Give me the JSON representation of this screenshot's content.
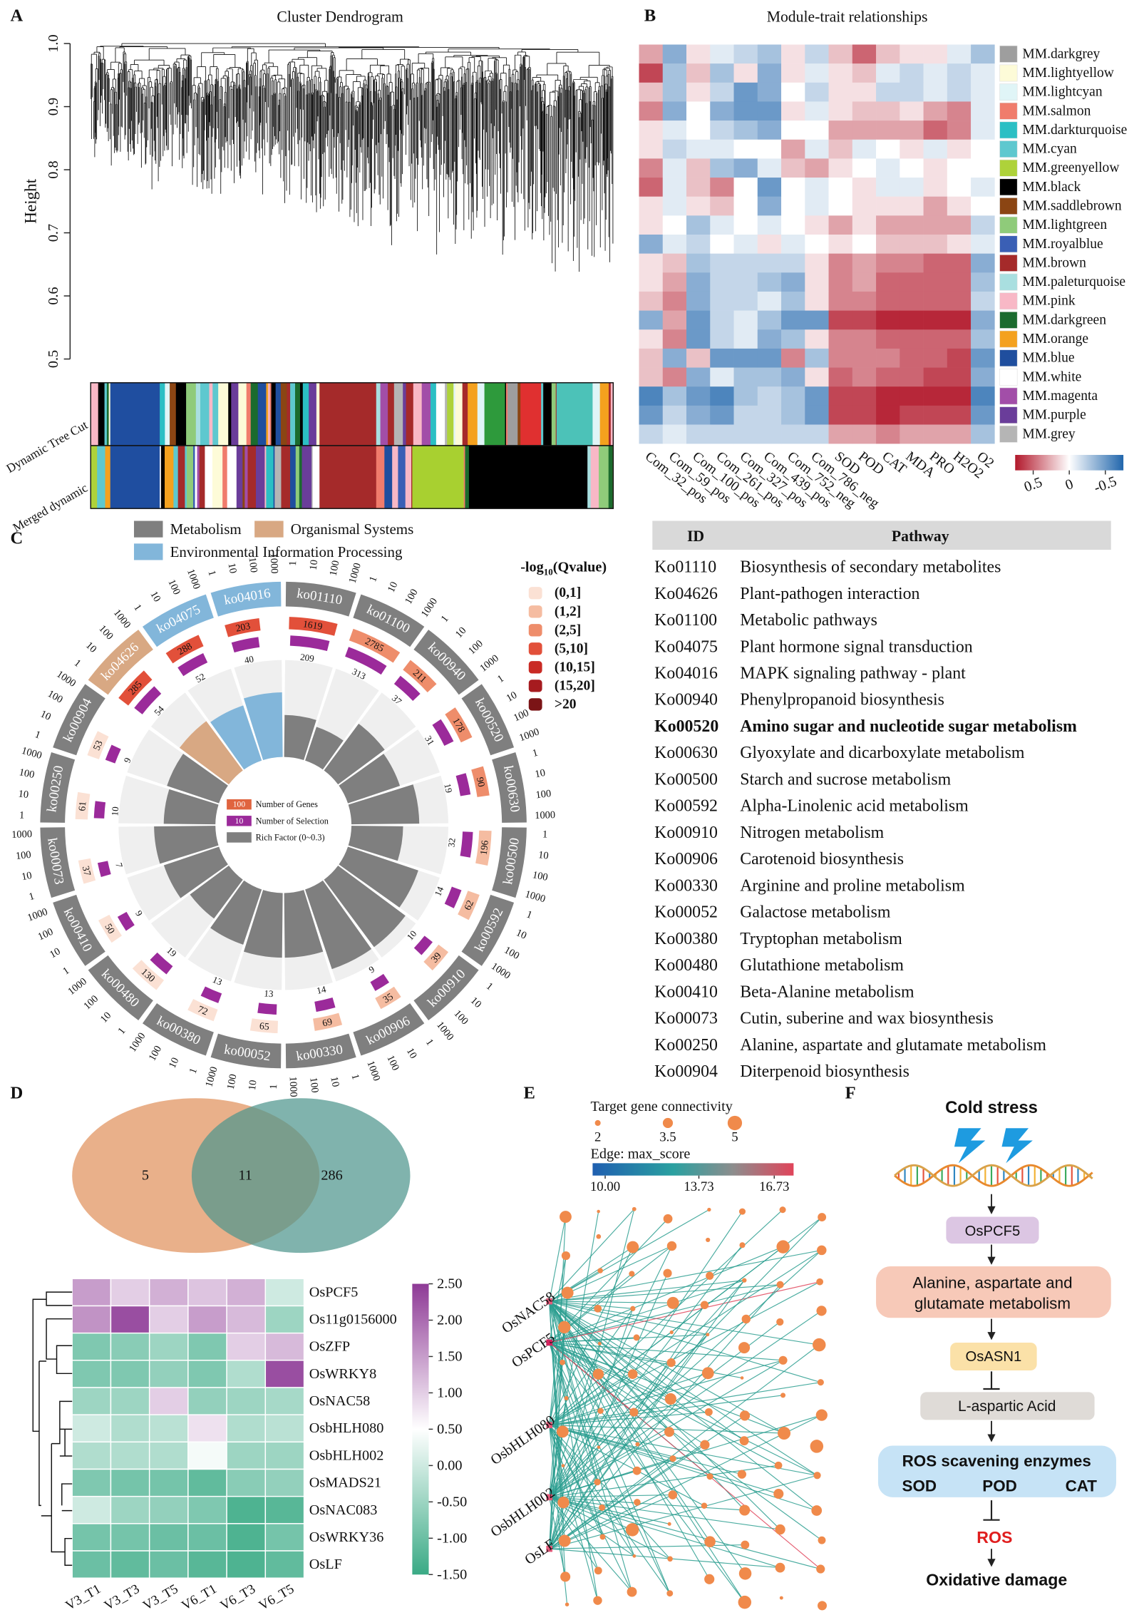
{
  "panel_labels": [
    "A",
    "B",
    "C",
    "D",
    "E",
    "F"
  ],
  "panel_a": {
    "title": "Cluster Dendrogram",
    "y_label": "Height",
    "ylim": [
      0.5,
      1.0
    ],
    "yticks": [
      0.5,
      0.6,
      0.7,
      0.8,
      0.9,
      {
        "value": 1,
        "label": "1.0"
      }
    ],
    "color_rows": [
      "Dynamic Tree Cut",
      "Merged dynamic"
    ]
  },
  "panel_b": {
    "title": "Module-trait relationships",
    "columns": [
      "Com_32_pos",
      "Com_59_pos",
      "Com_100_pos",
      "Com_261_pos",
      "Com_327_pos",
      "Com_439_pos",
      "Com_752_neg",
      "Com_786_neg",
      "SOD",
      "POD",
      "CAT",
      "MDA",
      "PRO",
      "H2O2",
      "O2"
    ],
    "rows": [
      "MM.darkgrey",
      "MM.lightyellow",
      "MM.lightcyan",
      "MM.salmon",
      "MM.darkturquoise",
      "MM.cyan",
      "MM.greenyellow",
      "MM.black",
      "MM.saddlebrown",
      "MM.lightgreen",
      "MM.royalblue",
      "MM.brown",
      "MM.paleturquoise",
      "MM.pink",
      "MM.darkgreen",
      "MM.orange",
      "MM.blue",
      "MM.white",
      "MM.magenta",
      "MM.purple",
      "MM.grey"
    ],
    "row_colors": [
      "#9e9e9e",
      "#fdfbd8",
      "#e0f5f7",
      "#f07c6c",
      "#2bbfc4",
      "#5ec8cf",
      "#aed23a",
      "#000000",
      "#8b4513",
      "#8fcb7a",
      "#3a5fb5",
      "#a52a2a",
      "#a9dfe0",
      "#f8b8c6",
      "#1b6b2e",
      "#f4a11e",
      "#1f4e9e",
      "#ffffff",
      "#a24ea8",
      "#6a3d9a",
      "#b5b5b5"
    ],
    "values": [
      [
        0.3,
        -0.4,
        0.1,
        -0.1,
        -0.2,
        -0.3,
        0.1,
        -0.2,
        0.2,
        0.5,
        0.2,
        0.1,
        0.1,
        -0.1,
        -0.3
      ],
      [
        0.6,
        -0.3,
        0.2,
        -0.3,
        0.1,
        -0.4,
        0.1,
        -0.1,
        0.1,
        0.2,
        -0.1,
        -0.2,
        -0.1,
        -0.2,
        -0.1
      ],
      [
        0.2,
        -0.3,
        0.1,
        -0.2,
        -0.5,
        -0.4,
        0.0,
        -0.2,
        0.1,
        0.1,
        -0.2,
        -0.2,
        -0.1,
        -0.2,
        -0.1
      ],
      [
        0.4,
        -0.4,
        0.0,
        -0.4,
        -0.5,
        -0.5,
        0.1,
        -0.1,
        0.1,
        0.2,
        0.2,
        0.1,
        0.3,
        0.4,
        -0.1
      ],
      [
        0.1,
        -0.1,
        0.0,
        -0.2,
        -0.3,
        -0.4,
        0.0,
        0.0,
        0.3,
        0.3,
        0.3,
        0.3,
        0.5,
        0.4,
        -0.1
      ],
      [
        0.1,
        -0.2,
        -0.1,
        -0.1,
        0.0,
        0.0,
        0.3,
        -0.1,
        0.2,
        -0.1,
        0.0,
        0.1,
        -0.1,
        0.1,
        0.0
      ],
      [
        0.4,
        -0.1,
        0.2,
        -0.3,
        -0.4,
        -0.1,
        0.2,
        0.3,
        0.1,
        0.0,
        -0.1,
        0.0,
        0.1,
        0.0,
        0.0
      ],
      [
        0.5,
        -0.1,
        0.2,
        0.4,
        0.0,
        -0.5,
        0.0,
        -0.1,
        0.0,
        0.1,
        -0.1,
        -0.1,
        0.1,
        0.0,
        -0.1
      ],
      [
        0.1,
        -0.1,
        0.1,
        0.2,
        0.0,
        -0.4,
        0.0,
        -0.1,
        0.0,
        0.1,
        0.1,
        0.1,
        0.3,
        0.1,
        0.0
      ],
      [
        0.1,
        0.0,
        -0.3,
        -0.1,
        0.0,
        -0.1,
        0.0,
        0.1,
        0.3,
        0.1,
        0.3,
        0.3,
        0.3,
        0.3,
        -0.2
      ],
      [
        -0.4,
        -0.1,
        -0.2,
        0.0,
        -0.1,
        0.1,
        -0.1,
        0.0,
        0.1,
        0.0,
        0.2,
        0.2,
        0.2,
        0.1,
        -0.1
      ],
      [
        0.1,
        0.2,
        -0.3,
        -0.2,
        -0.2,
        -0.2,
        -0.2,
        0.1,
        0.4,
        0.3,
        0.4,
        0.4,
        0.5,
        0.5,
        -0.4
      ],
      [
        0.1,
        0.3,
        -0.4,
        -0.2,
        -0.2,
        -0.3,
        -0.4,
        0.1,
        0.4,
        0.3,
        0.5,
        0.5,
        0.5,
        0.5,
        -0.3
      ],
      [
        0.2,
        0.4,
        -0.4,
        -0.2,
        -0.2,
        -0.1,
        -0.3,
        0.1,
        0.4,
        0.4,
        0.5,
        0.5,
        0.5,
        0.5,
        -0.2
      ],
      [
        -0.4,
        0.3,
        -0.5,
        -0.2,
        -0.1,
        -0.3,
        -0.5,
        -0.5,
        0.6,
        0.6,
        0.7,
        0.7,
        0.7,
        0.7,
        -0.4
      ],
      [
        0.1,
        0.4,
        -0.5,
        -0.2,
        -0.1,
        -0.4,
        -0.3,
        0.1,
        0.4,
        0.4,
        0.5,
        0.5,
        0.5,
        0.5,
        -0.3
      ],
      [
        0.2,
        -0.4,
        0.2,
        -0.5,
        -0.5,
        -0.5,
        0.4,
        -0.3,
        0.4,
        0.4,
        0.4,
        0.5,
        0.5,
        0.6,
        -0.5
      ],
      [
        0.2,
        0.4,
        -0.4,
        -0.1,
        -0.3,
        -0.3,
        -0.4,
        0.1,
        0.5,
        0.4,
        0.5,
        0.5,
        0.6,
        0.6,
        -0.4
      ],
      [
        -0.6,
        -0.3,
        -0.5,
        -0.6,
        -0.3,
        -0.2,
        -0.3,
        -0.5,
        0.6,
        0.6,
        0.7,
        0.7,
        0.7,
        0.7,
        -0.6
      ],
      [
        -0.5,
        -0.2,
        -0.4,
        -0.5,
        -0.2,
        -0.2,
        -0.3,
        -0.5,
        0.6,
        0.6,
        0.7,
        0.6,
        0.6,
        0.6,
        -0.5
      ],
      [
        -0.2,
        -0.1,
        -0.2,
        -0.2,
        -0.2,
        -0.2,
        -0.2,
        -0.2,
        0.3,
        0.3,
        0.4,
        0.3,
        0.3,
        0.3,
        -0.3
      ]
    ],
    "clim": [
      0.75,
      -0.75
    ],
    "cticks": [
      0.5,
      0,
      -0.5
    ]
  },
  "panel_c": {
    "categories": [
      {
        "name": "Metabolism",
        "color": "#7f7f7f"
      },
      {
        "name": "Organismal Systems",
        "color": "#d8a883"
      },
      {
        "name": "Environmental Information Processing",
        "color": "#82b6da"
      }
    ],
    "ids": [
      "ko01110",
      "ko01100",
      "ko00940",
      "ko00520",
      "ko00630",
      "ko00500",
      "ko00592",
      "ko00910",
      "ko00906",
      "ko00330",
      "ko00052",
      "ko00380",
      "ko00480",
      "ko00410",
      "ko00073",
      "ko00250",
      "ko00904",
      "ko04626",
      "ko04075",
      "ko04016"
    ],
    "category": [
      0,
      0,
      0,
      0,
      0,
      0,
      0,
      0,
      0,
      0,
      0,
      0,
      0,
      0,
      0,
      0,
      0,
      1,
      2,
      2
    ],
    "genes": [
      1619,
      2785,
      211,
      178,
      90,
      196,
      62,
      39,
      35,
      69,
      65,
      72,
      130,
      50,
      37,
      61,
      53,
      285,
      288,
      203
    ],
    "selection": [
      209,
      313,
      37,
      31,
      19,
      32,
      14,
      10,
      9,
      14,
      13,
      13,
      19,
      9,
      7,
      10,
      9,
      54,
      52,
      40
    ],
    "rich_factor": [
      0.13,
      0.11,
      0.18,
      0.17,
      0.21,
      0.16,
      0.23,
      0.26,
      0.26,
      0.2,
      0.2,
      0.18,
      0.15,
      0.18,
      0.19,
      0.16,
      0.17,
      0.19,
      0.18,
      0.2
    ],
    "qclass": [
      3,
      2,
      2,
      2,
      2,
      1,
      1,
      1,
      1,
      1,
      0,
      0,
      0,
      0,
      0,
      0,
      0,
      3,
      3,
      3
    ],
    "scale_ticks": [
      "1",
      "10",
      "100",
      "1000"
    ],
    "qvalue_title": [
      "-log",
      "10",
      "(Qvalue)"
    ],
    "qvalue_classes": [
      {
        "label": "(0,1]",
        "color": "#fbe1d4"
      },
      {
        "label": "(1,2]",
        "color": "#f5bca1"
      },
      {
        "label": "(2,5]",
        "color": "#ee8d6b"
      },
      {
        "label": "(5,10]",
        "color": "#e2503a"
      },
      {
        "label": "(10,15]",
        "color": "#c92a24"
      },
      {
        "label": "(15,20]",
        "color": "#a61b1f"
      },
      {
        "label": ">20",
        "color": "#7b1416"
      }
    ],
    "inner_legend": {
      "genes_example": 100,
      "genes_label": "Number of Genes",
      "selection_example": 10,
      "selection_label": "Number of Selection",
      "rich_label": "Rich Factor (0~0.3)"
    }
  },
  "table": {
    "header": [
      "ID",
      "Pathway"
    ],
    "highlight": 6,
    "rows": [
      [
        "Ko01110",
        "Biosynthesis of secondary metabolites"
      ],
      [
        "Ko04626",
        "Plant-pathogen interaction"
      ],
      [
        "Ko01100",
        "Metabolic pathways"
      ],
      [
        "Ko04075",
        "Plant hormone signal transduction"
      ],
      [
        "Ko04016",
        "MAPK signaling pathway - plant"
      ],
      [
        "Ko00940",
        "Phenylpropanoid biosynthesis"
      ],
      [
        "Ko00520",
        "Amino sugar and nucleotide sugar metabolism"
      ],
      [
        "Ko00630",
        "Glyoxylate and dicarboxylate metabolism"
      ],
      [
        "Ko00500",
        "Starch and sucrose metabolism"
      ],
      [
        "Ko00592",
        "Alpha-Linolenic acid metabolism"
      ],
      [
        "Ko00910",
        "Nitrogen metabolism"
      ],
      [
        "Ko00906",
        "Carotenoid biosynthesis"
      ],
      [
        "Ko00330",
        "Arginine and proline metabolism"
      ],
      [
        "Ko00052",
        "Galactose metabolism"
      ],
      [
        "Ko00380",
        "Tryptophan metabolism"
      ],
      [
        "Ko00480",
        "Glutathione metabolism"
      ],
      [
        "Ko00410",
        "Beta-Alanine metabolism"
      ],
      [
        "Ko00073",
        "Cutin, suberine and wax biosynthesis"
      ],
      [
        "Ko00250",
        "Alanine, aspartate and glutamate metabolism"
      ],
      [
        "Ko00904",
        "Diterpenoid biosynthesis"
      ]
    ]
  },
  "panel_d": {
    "venn": {
      "left": 5,
      "both": 11,
      "right": 286
    },
    "genes": [
      "OsPCF5",
      "Os11g0156000",
      "OsZFP",
      "OsWRKY8",
      "OsNAC58",
      "OsbHLH080",
      "OsbHLH002",
      "OsMADS21",
      "OsNAC083",
      "OsWRKY36",
      "OsLF"
    ],
    "samples": [
      "V3_T1",
      "V3_T3",
      "V3_T5",
      "V6_T1",
      "V6_T3",
      "V6_T5"
    ],
    "values": [
      [
        1.5,
        1.0,
        1.3,
        1.1,
        1.3,
        0.0
      ],
      [
        1.6,
        2.3,
        1.0,
        1.5,
        1.2,
        -0.5
      ],
      [
        -0.8,
        -0.7,
        -0.5,
        -0.8,
        1.0,
        1.2
      ],
      [
        -0.8,
        -0.8,
        -0.6,
        -0.8,
        -0.3,
        2.3
      ],
      [
        -0.5,
        -0.5,
        1.0,
        -0.6,
        -0.5,
        -0.4
      ],
      [
        0.0,
        -0.3,
        -0.2,
        0.8,
        -0.3,
        -0.2
      ],
      [
        -0.3,
        -0.3,
        -0.3,
        0.4,
        -0.5,
        -0.5
      ],
      [
        -0.8,
        -0.9,
        -0.9,
        -1.1,
        -0.7,
        -0.6
      ],
      [
        0.0,
        -0.5,
        -0.6,
        -0.8,
        -1.3,
        -1.2
      ],
      [
        -0.9,
        -0.9,
        -1.0,
        -1.0,
        -1.3,
        -0.9
      ],
      [
        -1.0,
        -1.1,
        -1.0,
        -1.2,
        -1.3,
        -1.1
      ]
    ],
    "clim": [
      -1.5,
      2.5
    ],
    "cticks": [
      {
        "value": 2.5,
        "label": "2.50"
      },
      {
        "value": 2,
        "label": "2.00"
      },
      {
        "value": 1.5,
        "label": "1.50"
      },
      {
        "value": 1,
        "label": "1.00"
      },
      {
        "value": 0.5,
        "label": "0.50"
      },
      {
        "value": 0,
        "label": "0.00"
      },
      {
        "value": -0.5,
        "label": "-0.50"
      },
      {
        "value": -1,
        "label": "-1.00"
      },
      {
        "value": -1.5,
        "label": "-1.50"
      }
    ]
  },
  "panel_e": {
    "size_title": "Target gene connectivity",
    "sizes": [
      2,
      3.5,
      5
    ],
    "edge_title": "Edge: max_score",
    "edge_lim": [
      9.5,
      17.5
    ],
    "edge_ticks": [
      {
        "value": 10,
        "label": "10.00"
      },
      {
        "value": 13.73,
        "label": "13.73"
      },
      {
        "value": 16.73,
        "label": "16.73"
      }
    ],
    "tfs": [
      "OsNAC58",
      "OsPCF5",
      "OsbHLH080",
      "OsbHLH002",
      "OsLF"
    ]
  },
  "panel_f": {
    "stress": "Cold stress",
    "gene1": "OsPCF5",
    "pathway": [
      "Alanine, aspartate and",
      "glutamate metabolism"
    ],
    "gene2": "OsASN1",
    "metabolite": "L-aspartic Acid",
    "enzymes_title": "ROS scavening enzymes",
    "enzymes": [
      "SOD",
      "POD",
      "CAT"
    ],
    "ros": "ROS",
    "outcome": "Oxidative damage"
  }
}
